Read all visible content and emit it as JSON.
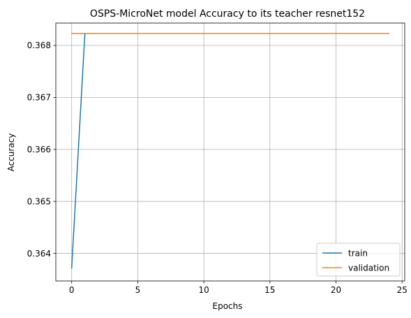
{
  "chart_data": {
    "type": "line",
    "title": "OSPS-MicroNet model Accuracy to its teacher resnet152",
    "xlabel": "Epochs",
    "ylabel": "Accuracy",
    "xlim": [
      -1.2,
      25.2
    ],
    "ylim": [
      0.36347,
      0.36843
    ],
    "xticks": [
      0,
      5,
      10,
      15,
      20,
      25
    ],
    "xtick_labels": [
      "0",
      "5",
      "10",
      "15",
      "20",
      "25"
    ],
    "yticks": [
      0.364,
      0.365,
      0.366,
      0.367,
      0.368
    ],
    "ytick_labels": [
      "0.364",
      "0.365",
      "0.366",
      "0.367",
      "0.368"
    ],
    "grid": true,
    "legend_position": "lower right",
    "series": [
      {
        "name": "train",
        "color": "#1f77b4",
        "x": [
          0,
          1
        ],
        "y": [
          0.36372,
          0.36823
        ]
      },
      {
        "name": "validation",
        "color": "#ff7f0e",
        "x": [
          0,
          1,
          2,
          3,
          4,
          5,
          6,
          7,
          8,
          9,
          10,
          11,
          12,
          13,
          14,
          15,
          16,
          17,
          18,
          19,
          20,
          21,
          22,
          23,
          24
        ],
        "y": [
          0.36823,
          0.36823,
          0.36823,
          0.36823,
          0.36823,
          0.36823,
          0.36823,
          0.36823,
          0.36823,
          0.36823,
          0.36823,
          0.36823,
          0.36823,
          0.36823,
          0.36823,
          0.36823,
          0.36823,
          0.36823,
          0.36823,
          0.36823,
          0.36823,
          0.36823,
          0.36823,
          0.36823,
          0.36823
        ]
      }
    ]
  }
}
